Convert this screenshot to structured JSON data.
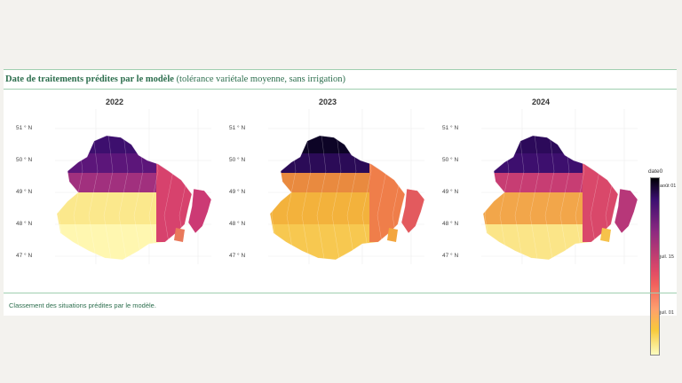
{
  "figure": {
    "title_bold": "Date de traitements prédites par le modèle",
    "title_rest": "(tolérance variétale moyenne, sans irrigation)",
    "caption": "Classement des situations prédites par le modèle.",
    "accent_color": "#2c6e4d",
    "rule_color": "#9fcfb0"
  },
  "panels": [
    {
      "label": "2022",
      "lat_ticks": [
        "51 ° N",
        "50 ° N",
        "49 ° N",
        "48 ° N",
        "47 ° N"
      ],
      "band_colors": [
        "#3d0f6e",
        "#5c167a",
        "#a1307e",
        "#fbe88c",
        "#fff7b0"
      ],
      "east_colors": [
        "#d7426d",
        "#cc3a74",
        "#e9795b"
      ]
    },
    {
      "label": "2023",
      "lat_ticks": [
        "51 ° N",
        "50 ° N",
        "49 ° N",
        "48 ° N",
        "47 ° N"
      ],
      "band_colors": [
        "#0d0426",
        "#2b0b57",
        "#e98a3f",
        "#f3b23c",
        "#f7c850"
      ],
      "east_colors": [
        "#ef7e4a",
        "#e35a5e",
        "#f3a63f"
      ]
    },
    {
      "label": "2024",
      "lat_ticks": [
        "51 ° N",
        "50 ° N",
        "49 ° N",
        "48 ° N",
        "47 ° N"
      ],
      "band_colors": [
        "#2c0a5a",
        "#3d0f6e",
        "#c73d73",
        "#f2a64a",
        "#fbe588"
      ],
      "east_colors": [
        "#d9486a",
        "#b73779",
        "#f6c24b"
      ]
    }
  ],
  "legend": {
    "title": "date0",
    "ticks": [
      "août 01",
      "juil. 15",
      "juil. 01"
    ],
    "tick_fractions": [
      0.05,
      0.45,
      0.76
    ]
  }
}
